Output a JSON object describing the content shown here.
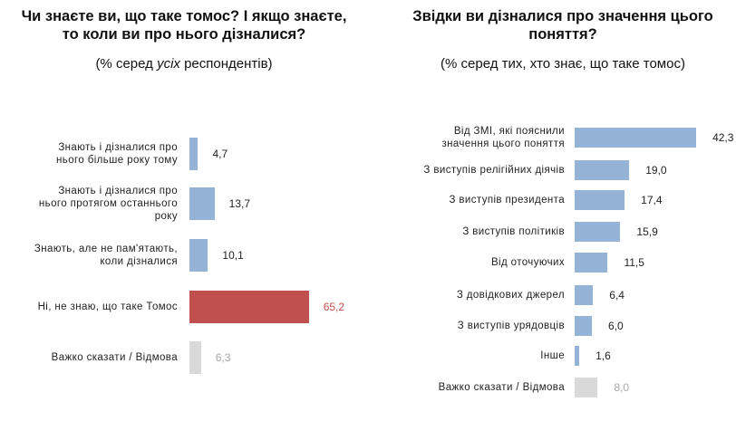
{
  "chart_data": [
    {
      "type": "bar",
      "orientation": "horizontal",
      "title": "Чи знаєте ви, що таке томос? І якщо знаєте, то коли ви про нього дізналися?",
      "title_lines": [
        "Чи знаєте ви, що таке томос? І якщо знаєте,",
        "то коли ви про нього дізналися?"
      ],
      "subtitle_pre": "(% серед ",
      "subtitle_em": "усіх",
      "subtitle_post": " респондентів)",
      "categories": [
        "Знають і дізналися про нього більше року тому",
        "Знають і дізналися про нього протягом останнього року",
        "Знають, але не пам'ятають, коли дізналися",
        "Ні, не знаю, що таке Томос",
        "Важко сказати / Відмова"
      ],
      "label_lines": [
        [
          "Знають і дізналися про",
          "нього більше року тому"
        ],
        [
          "Знають і дізналися про",
          "нього протягом останнього",
          "року"
        ],
        [
          "Знають, але не пам'ятають,",
          "коли дізналися"
        ],
        [
          "Ні, не знаю, що таке Томос"
        ],
        [
          "Важко сказати / Відмова"
        ]
      ],
      "values": [
        4.7,
        13.7,
        10.1,
        65.2,
        6.3
      ],
      "value_labels": [
        "4,7",
        "13,7",
        "10,1",
        "65,2",
        "6,3"
      ],
      "colors": [
        "#95b3d7",
        "#95b3d7",
        "#95b3d7",
        "#c0504d",
        "#d9d9d9"
      ],
      "value_colors": [
        "#222222",
        "#222222",
        "#222222",
        "#c0504d",
        "#a6a6a6"
      ],
      "xlim": [
        0,
        100
      ],
      "grid": false,
      "legend": false
    },
    {
      "type": "bar",
      "orientation": "horizontal",
      "title": "Звідки ви дізналися про значення цього поняття?",
      "title_lines": [
        "Звідки ви дізналися про значення цього",
        "поняття?"
      ],
      "subtitle": "(% серед тих, хто знає, що таке томос)",
      "categories": [
        "Від ЗМІ, які пояснили значення цього поняття",
        "З виступів релігійних діячів",
        "З виступів президента",
        "З виступів політиків",
        "Від оточуючих",
        "З довідкових джерел",
        "З виступів урядовців",
        "Інше",
        "Важко сказати / Відмова"
      ],
      "label_lines": [
        [
          "Від ЗМІ, які пояснили",
          "значення цього поняття"
        ],
        [
          "З виступів релігійних діячів"
        ],
        [
          "З виступів президента"
        ],
        [
          "З виступів політиків"
        ],
        [
          "Від оточуючих"
        ],
        [
          "З довідкових джерел"
        ],
        [
          "З виступів урядовців"
        ],
        [
          "Інше"
        ],
        [
          "Важко сказати / Відмова"
        ]
      ],
      "values": [
        42.3,
        19.0,
        17.4,
        15.9,
        11.5,
        6.4,
        6.0,
        1.6,
        8.0
      ],
      "value_labels": [
        "42,3",
        "19,0",
        "17,4",
        "15,9",
        "11,5",
        "6,4",
        "6,0",
        "1,6",
        "8,0"
      ],
      "colors": [
        "#95b3d7",
        "#95b3d7",
        "#95b3d7",
        "#95b3d7",
        "#95b3d7",
        "#95b3d7",
        "#95b3d7",
        "#95b3d7",
        "#d9d9d9"
      ],
      "value_colors": [
        "#222222",
        "#222222",
        "#222222",
        "#222222",
        "#222222",
        "#222222",
        "#222222",
        "#222222",
        "#a6a6a6"
      ],
      "xlim": [
        0,
        50
      ],
      "grid": false,
      "legend": false
    }
  ]
}
